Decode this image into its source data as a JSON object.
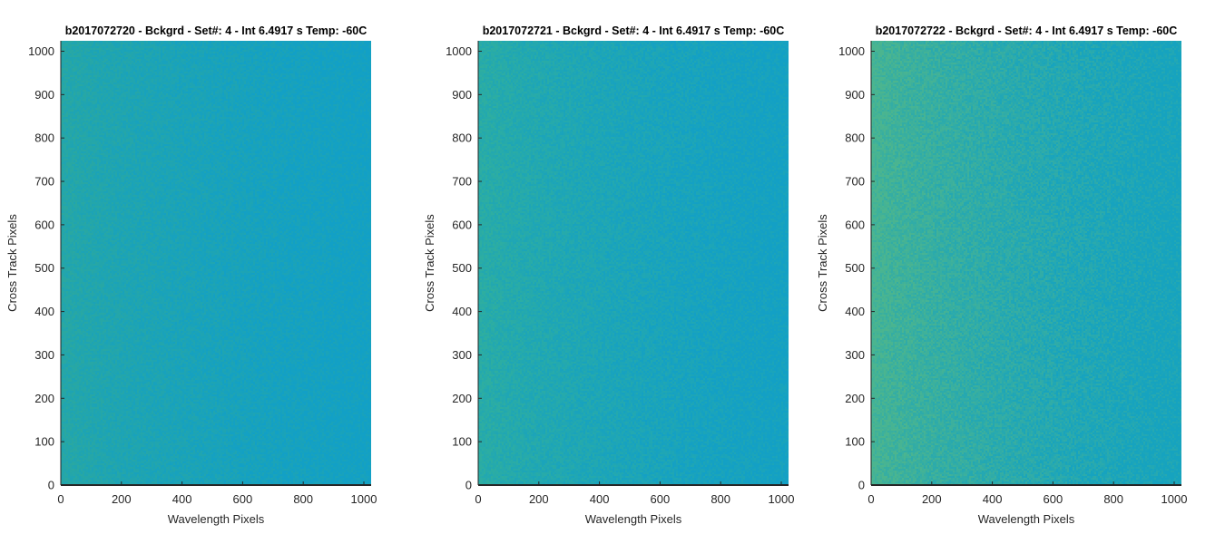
{
  "chart_data": [
    {
      "type": "heatmap",
      "title": "b2017072720 - Bckgrd - Set#: 4 - Int 6.4917 s Temp: -60C",
      "xlabel": "Wavelength Pixels",
      "ylabel": "Cross Track Pixels",
      "xlim": [
        0,
        1024
      ],
      "ylim": [
        0,
        1024
      ],
      "xticks": [
        0,
        200,
        400,
        600,
        800,
        1000
      ],
      "yticks": [
        0,
        100,
        200,
        300,
        400,
        500,
        600,
        700,
        800,
        900,
        1000
      ],
      "colormap": {
        "left": "#2aa8a0",
        "right": "#12a0c6"
      },
      "gradient_strength": 0.55,
      "grid": false
    },
    {
      "type": "heatmap",
      "title": "b2017072721 - Bckgrd - Set#: 4 - Int 6.4917 s Temp: -60C",
      "xlabel": "Wavelength Pixels",
      "ylabel": "Cross Track Pixels",
      "xlim": [
        0,
        1024
      ],
      "ylim": [
        0,
        1024
      ],
      "xticks": [
        0,
        200,
        400,
        600,
        800,
        1000
      ],
      "yticks": [
        0,
        100,
        200,
        300,
        400,
        500,
        600,
        700,
        800,
        900,
        1000
      ],
      "colormap": {
        "left": "#2eaea0",
        "right": "#13a0c5"
      },
      "gradient_strength": 0.65,
      "grid": false
    },
    {
      "type": "heatmap",
      "title": "b2017072722 - Bckgrd - Set#: 4 - Int 6.4917 s Temp: -60C",
      "xlabel": "Wavelength Pixels",
      "ylabel": "Cross Track Pixels",
      "xlim": [
        0,
        1024
      ],
      "ylim": [
        0,
        1024
      ],
      "xticks": [
        0,
        200,
        400,
        600,
        800,
        1000
      ],
      "yticks": [
        0,
        100,
        200,
        300,
        400,
        500,
        600,
        700,
        800,
        900,
        1000
      ],
      "colormap": {
        "left": "#4bb58f",
        "right": "#16a3bf"
      },
      "gradient_strength": 1.0,
      "grid": false
    }
  ]
}
